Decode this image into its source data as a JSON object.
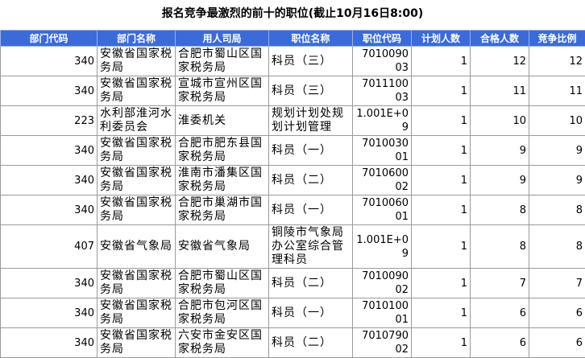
{
  "header": {
    "title": "报名竞争最激烈的前十的职位(截止10月16日8:00)"
  },
  "table": {
    "header": [
      "部门代码",
      "部门名称",
      "用人司局",
      "职位名称",
      "职位代码",
      "计划人数",
      "合格人数",
      "竞争比例"
    ],
    "rows": [
      [
        "340",
        "安徽省国家税务局",
        "合肥市蜀山区国家税务局",
        "科员（三）",
        "701009003",
        "1",
        "12",
        "12"
      ],
      [
        "340",
        "安徽省国家税务局",
        "宣城市宣州区国家税务局",
        "科员（三）",
        "701110003",
        "1",
        "11",
        "11"
      ],
      [
        "223",
        "水利部淮河水利委员会",
        "淮委机关",
        "规划计划处规划计划管理",
        "1.001E+09",
        "1",
        "10",
        "10"
      ],
      [
        "340",
        "安徽省国家税务局",
        "合肥市肥东县国家税务局",
        "科员（一）",
        "701003001",
        "1",
        "9",
        "9"
      ],
      [
        "340",
        "安徽省国家税务局",
        "淮南市潘集区国家税务局",
        "科员（二）",
        "701060002",
        "1",
        "9",
        "9"
      ],
      [
        "340",
        "安徽省国家税务局",
        "合肥市巢湖市国家税务局",
        "科员（一）",
        "701006001",
        "1",
        "8",
        "8"
      ],
      [
        "407",
        "安徽省气象局",
        "安徽省气象局",
        "铜陵市气象局办公室综合管理科员",
        "1.001E+09",
        "1",
        "8",
        "8"
      ],
      [
        "340",
        "安徽省国家税务局",
        "合肥市蜀山区国家税务局",
        "科员（二）",
        "701009002",
        "1",
        "7",
        "7"
      ],
      [
        "340",
        "安徽省国家税务局",
        "合肥市包河区国家税务局",
        "科员（一）",
        "701010001",
        "1",
        "6",
        "6"
      ],
      [
        "340",
        "安徽省国家税务局",
        "六安市金安区国家税务局",
        "科员（二）",
        "701079002",
        "1",
        "6",
        "6"
      ]
    ]
  }
}
